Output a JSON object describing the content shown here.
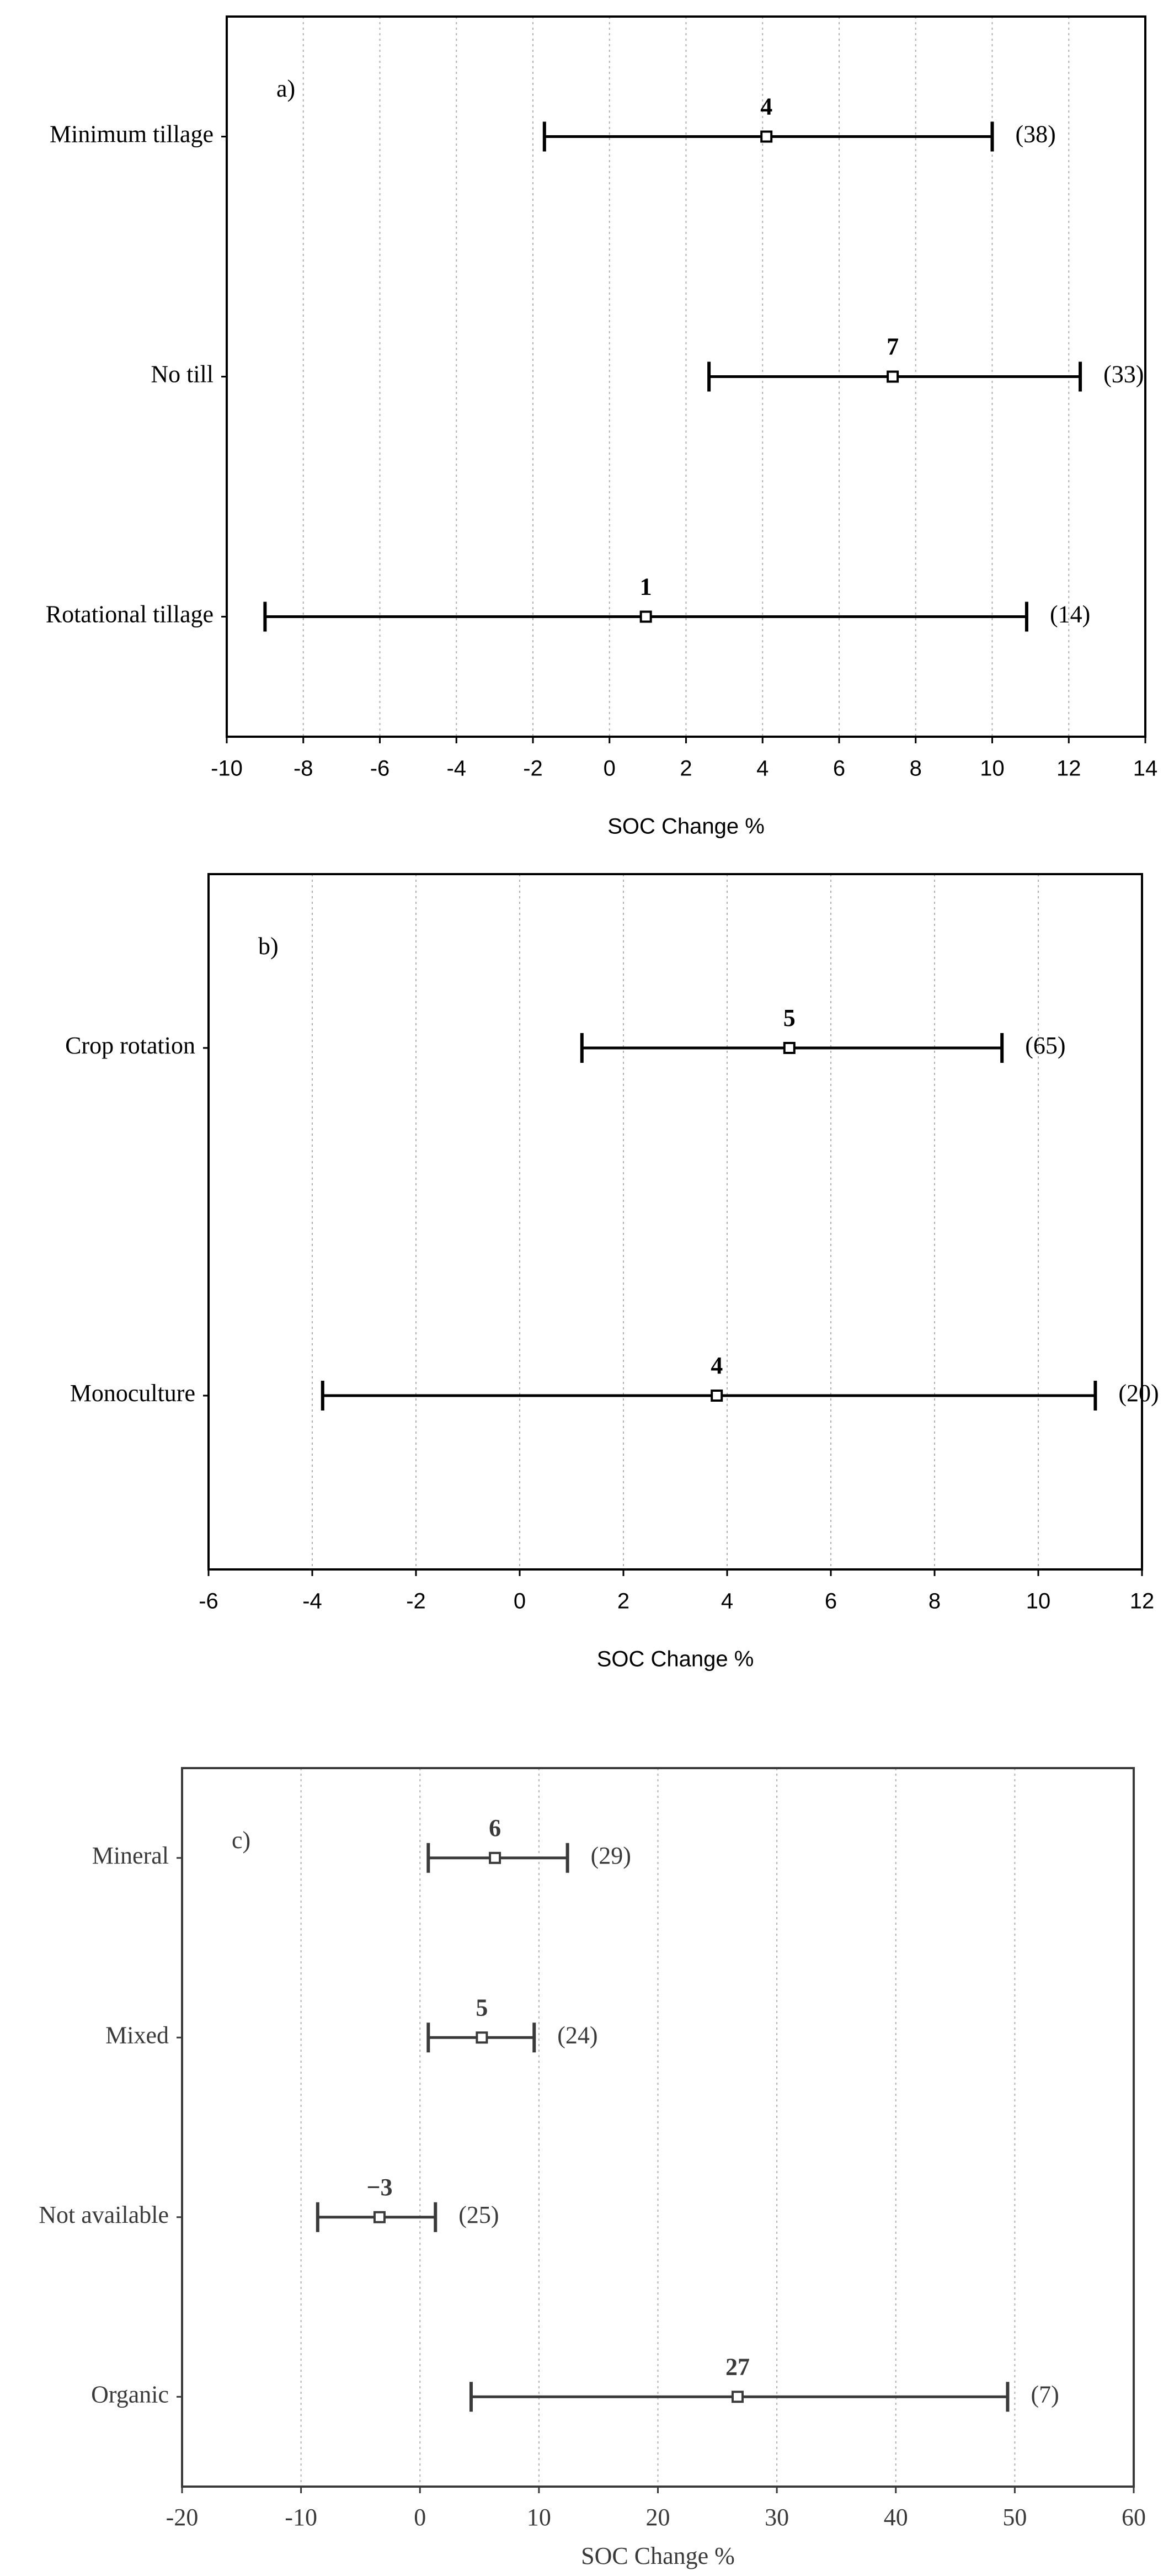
{
  "chart_data": [
    {
      "type": "errorbar",
      "panel": "a)",
      "color": "#000000",
      "grid": true,
      "categories": [
        "Minimum tillage",
        "No till",
        "Rotational tillage"
      ],
      "values": [
        4.1,
        7.4,
        0.95
      ],
      "value_labels": [
        "4",
        "7",
        "1"
      ],
      "lower": [
        -1.7,
        2.6,
        -9.0
      ],
      "upper": [
        10.0,
        12.3,
        10.9
      ],
      "n_labels": [
        "(38)",
        "(33)",
        "(14)"
      ],
      "xlabel": "SOC Change %",
      "xlim": [
        -10,
        14
      ],
      "xticks": [
        -10,
        -8,
        -6,
        -4,
        -2,
        0,
        2,
        4,
        6,
        8,
        10,
        12,
        14
      ]
    },
    {
      "type": "errorbar",
      "panel": "b)",
      "color": "#000000",
      "grid": true,
      "categories": [
        "Crop rotation",
        "Monoculture"
      ],
      "values": [
        5.2,
        3.8
      ],
      "value_labels": [
        "5",
        "4"
      ],
      "lower": [
        1.2,
        -3.8
      ],
      "upper": [
        9.3,
        11.1
      ],
      "n_labels": [
        "(65)",
        "(20)"
      ],
      "xlabel": "SOC Change %",
      "xlim": [
        -6,
        12
      ],
      "xticks": [
        -6,
        -4,
        -2,
        0,
        2,
        4,
        6,
        8,
        10,
        12
      ]
    },
    {
      "type": "errorbar",
      "panel": "c)",
      "color": "#3a3a3a",
      "grid": true,
      "categories": [
        "Mineral",
        "Mixed",
        "Not available",
        "Organic"
      ],
      "values": [
        6.3,
        5.2,
        -3.4,
        26.7
      ],
      "value_labels": [
        "6",
        "5",
        "−3",
        "27"
      ],
      "lower": [
        0.7,
        0.7,
        -8.6,
        4.3
      ],
      "upper": [
        12.4,
        9.6,
        1.3,
        49.4
      ],
      "n_labels": [
        "(29)",
        "(24)",
        "(25)",
        "(7)"
      ],
      "xlabel": "SOC Change %",
      "xlim": [
        -20,
        60
      ],
      "xticks": [
        -20,
        -10,
        0,
        10,
        20,
        30,
        40,
        50,
        60
      ]
    }
  ]
}
